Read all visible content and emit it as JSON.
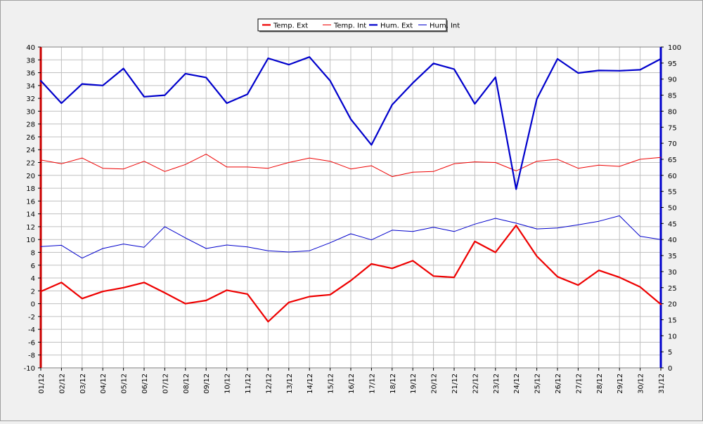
{
  "chart_data": {
    "type": "line",
    "categories": [
      "01/12",
      "02/12",
      "03/12",
      "04/12",
      "05/12",
      "06/12",
      "07/12",
      "08/12",
      "09/12",
      "10/12",
      "11/12",
      "12/12",
      "13/12",
      "14/12",
      "15/12",
      "16/12",
      "17/12",
      "18/12",
      "19/12",
      "20/12",
      "21/12",
      "22/12",
      "23/12",
      "24/12",
      "25/12",
      "26/12",
      "27/12",
      "28/12",
      "29/12",
      "30/12",
      "31/12"
    ],
    "y_left": {
      "min": -10,
      "max": 40,
      "step": 2,
      "color": "#cc0000"
    },
    "y_right": {
      "min": 0,
      "max": 100,
      "step": 5,
      "color": "#0000cc"
    },
    "grid": true,
    "legend_position": "top-center",
    "series": [
      {
        "name": "Temp. Ext",
        "axis": "left",
        "color": "#ee0000",
        "width": 2.2,
        "values": [
          1.9,
          3.3,
          0.8,
          1.9,
          2.5,
          3.3,
          1.7,
          0.0,
          0.5,
          2.1,
          1.5,
          -2.8,
          0.2,
          1.1,
          1.4,
          3.6,
          6.2,
          5.5,
          6.7,
          4.3,
          4.1,
          9.7,
          8.0,
          12.2,
          7.4,
          4.2,
          2.9,
          5.2,
          4.1,
          2.6,
          -0.1
        ]
      },
      {
        "name": "Temp. Int",
        "axis": "left",
        "color": "#ee0000",
        "width": 1,
        "values": [
          22.4,
          21.8,
          22.7,
          21.1,
          21.0,
          22.2,
          20.6,
          21.7,
          23.3,
          21.3,
          21.3,
          21.1,
          22.0,
          22.7,
          22.2,
          21.0,
          21.5,
          19.8,
          20.5,
          20.6,
          21.8,
          22.1,
          22.0,
          20.7,
          22.2,
          22.5,
          21.1,
          21.6,
          21.4,
          22.5,
          22.8
        ]
      },
      {
        "name": "Hum. Ext",
        "axis": "right",
        "color": "#0000cc",
        "width": 2.2,
        "values": [
          89.5,
          82.5,
          88.5,
          88.0,
          93.3,
          84.5,
          85.0,
          91.7,
          90.5,
          82.5,
          85.3,
          96.5,
          94.5,
          96.9,
          89.5,
          77.5,
          69.5,
          82.0,
          88.8,
          94.9,
          93.1,
          82.3,
          90.6,
          55.7,
          83.8,
          96.3,
          91.9,
          92.7,
          92.6,
          92.9,
          96.3
        ]
      },
      {
        "name": "Hum. Int",
        "axis": "right",
        "color": "#0000cc",
        "width": 1,
        "values": [
          37.8,
          38.2,
          34.2,
          37.2,
          38.6,
          37.6,
          44.0,
          40.5,
          37.2,
          38.3,
          37.7,
          36.5,
          36.1,
          36.5,
          39.0,
          41.8,
          39.9,
          42.9,
          42.5,
          43.8,
          42.5,
          44.8,
          46.6,
          45.1,
          43.3,
          43.6,
          44.6,
          45.7,
          47.4,
          41.0,
          40.0
        ]
      }
    ]
  }
}
